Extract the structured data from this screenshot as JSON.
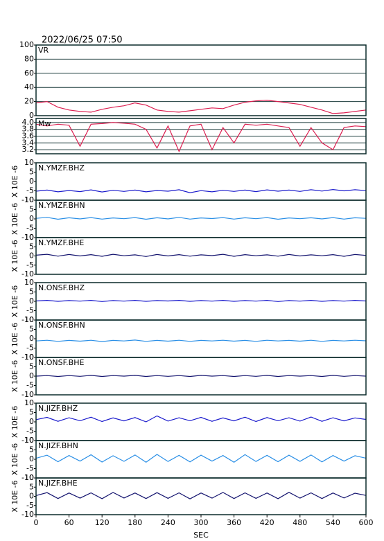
{
  "chart_data": [
    {
      "type": "line",
      "date": "2022/06/25 07:50",
      "title": "VR",
      "color": "#dc1e50",
      "grid": true,
      "x": [
        0,
        20,
        40,
        60,
        80,
        100,
        120,
        140,
        160,
        180,
        200,
        220,
        240,
        260,
        280,
        300,
        320,
        340,
        360,
        380,
        400,
        420,
        440,
        460,
        480,
        500,
        520,
        540,
        560,
        580,
        600
      ],
      "values": [
        18,
        20,
        12,
        8,
        6,
        5,
        9,
        12,
        14,
        18,
        15,
        8,
        6,
        5,
        7,
        9,
        11,
        10,
        15,
        19,
        21,
        22,
        20,
        18,
        16,
        12,
        8,
        3,
        4,
        6,
        8
      ],
      "xlim": [
        0,
        600
      ],
      "ylim": [
        0,
        100
      ],
      "yticks": [
        0,
        20,
        40,
        60,
        80,
        100
      ]
    },
    {
      "type": "line",
      "title": "Mw",
      "color": "#dc1e50",
      "grid": true,
      "x": [
        0,
        20,
        40,
        60,
        80,
        100,
        120,
        140,
        160,
        180,
        200,
        220,
        240,
        260,
        280,
        300,
        320,
        340,
        360,
        380,
        400,
        420,
        440,
        460,
        480,
        500,
        520,
        540,
        560,
        580,
        600
      ],
      "values": [
        3.95,
        3.9,
        3.95,
        3.92,
        3.3,
        3.95,
        3.97,
        4.0,
        3.98,
        3.95,
        3.8,
        3.25,
        3.9,
        3.15,
        3.9,
        3.95,
        3.2,
        3.85,
        3.4,
        3.95,
        3.92,
        3.95,
        3.9,
        3.85,
        3.3,
        3.85,
        3.4,
        3.2,
        3.85,
        3.9,
        3.88
      ],
      "xlim": [
        0,
        600
      ],
      "ylim": [
        3.08,
        4.12
      ],
      "yticks": [
        {
          "value": 3.2,
          "label": "3.2"
        },
        {
          "value": 3.4,
          "label": "3.4"
        },
        {
          "value": 3.6,
          "label": "3.6"
        },
        {
          "value": 3.8,
          "label": "3.8"
        },
        {
          "value": 4.0,
          "label": "4.0"
        }
      ]
    },
    {
      "type": "line",
      "title": "N.YMZF.BHZ",
      "ylabel": "X 10E -6",
      "color": "#1a1acc",
      "x": [
        0,
        20,
        40,
        60,
        80,
        100,
        120,
        140,
        160,
        180,
        200,
        220,
        240,
        260,
        280,
        300,
        320,
        340,
        360,
        380,
        400,
        420,
        440,
        460,
        480,
        500,
        520,
        540,
        560,
        580,
        600
      ],
      "values": [
        -5.2,
        -4.6,
        -5.5,
        -4.8,
        -5.4,
        -4.5,
        -5.6,
        -4.7,
        -5.3,
        -4.6,
        -5.5,
        -4.8,
        -5.2,
        -4.4,
        -6.0,
        -4.9,
        -5.5,
        -4.7,
        -5.3,
        -4.6,
        -5.4,
        -4.5,
        -5.2,
        -4.6,
        -5.3,
        -4.4,
        -5.1,
        -4.3,
        -5.0,
        -4.4,
        -4.9
      ],
      "xlim": [
        0,
        600
      ],
      "ylim": [
        -10,
        10
      ],
      "yticks": [
        -10,
        -5,
        0,
        5,
        10
      ]
    },
    {
      "type": "line",
      "title": "N.YMZF.BHN",
      "ylabel": "X 10E -6",
      "color": "#2a8fe6",
      "x": [
        0,
        20,
        40,
        60,
        80,
        100,
        120,
        140,
        160,
        180,
        200,
        220,
        240,
        260,
        280,
        300,
        320,
        340,
        360,
        380,
        400,
        420,
        440,
        460,
        480,
        500,
        520,
        540,
        560,
        580,
        600
      ],
      "values": [
        0.3,
        0.8,
        -0.2,
        0.6,
        0.0,
        0.7,
        -0.1,
        0.5,
        0.1,
        0.7,
        -0.2,
        0.6,
        0.0,
        0.8,
        -0.1,
        0.5,
        0.2,
        0.7,
        -0.1,
        0.6,
        0.1,
        0.7,
        -0.2,
        0.5,
        0.1,
        0.6,
        0.0,
        0.7,
        -0.1,
        0.6,
        0.3
      ],
      "xlim": [
        0,
        600
      ],
      "ylim": [
        -10,
        10
      ],
      "yticks": [
        -10,
        -5,
        0,
        5,
        10
      ]
    },
    {
      "type": "line",
      "title": "N.YMZF.BHE",
      "ylabel": "X 10E -6",
      "color": "#12126e",
      "x": [
        0,
        20,
        40,
        60,
        80,
        100,
        120,
        140,
        160,
        180,
        200,
        220,
        240,
        260,
        280,
        300,
        320,
        340,
        360,
        380,
        400,
        420,
        440,
        460,
        480,
        500,
        520,
        540,
        560,
        580,
        600
      ],
      "values": [
        0.4,
        0.9,
        -0.1,
        0.8,
        0.0,
        0.7,
        -0.2,
        0.9,
        0.1,
        0.6,
        -0.3,
        0.8,
        0.0,
        0.7,
        -0.1,
        0.6,
        0.2,
        0.9,
        -0.2,
        0.7,
        0.1,
        0.6,
        -0.1,
        0.8,
        0.0,
        0.6,
        0.1,
        0.7,
        -0.2,
        0.8,
        0.3
      ],
      "xlim": [
        0,
        600
      ],
      "ylim": [
        -10,
        10
      ],
      "yticks": [
        -10,
        -5,
        0,
        5,
        10
      ]
    },
    {
      "type": "line",
      "title": "N.ONSF.BHZ",
      "ylabel": "X 10E -6",
      "color": "#1a1acc",
      "x": [
        0,
        20,
        40,
        60,
        80,
        100,
        120,
        140,
        160,
        180,
        200,
        220,
        240,
        260,
        280,
        300,
        320,
        340,
        360,
        380,
        400,
        420,
        440,
        460,
        480,
        500,
        520,
        540,
        560,
        580,
        600
      ],
      "values": [
        0.2,
        0.5,
        0.0,
        0.4,
        0.1,
        0.5,
        -0.1,
        0.4,
        0.1,
        0.5,
        0.0,
        0.4,
        0.2,
        0.5,
        0.0,
        0.4,
        0.1,
        0.5,
        0.0,
        0.4,
        0.1,
        0.5,
        -0.1,
        0.4,
        0.1,
        0.5,
        0.0,
        0.4,
        0.1,
        0.5,
        0.2
      ],
      "xlim": [
        0,
        600
      ],
      "ylim": [
        -10,
        10
      ],
      "yticks": [
        -10,
        -5,
        0,
        5,
        10
      ]
    },
    {
      "type": "line",
      "title": "N.ONSF.BHN",
      "ylabel": "X 10E -6",
      "color": "#2a8fe6",
      "x": [
        0,
        20,
        40,
        60,
        80,
        100,
        120,
        140,
        160,
        180,
        200,
        220,
        240,
        260,
        280,
        300,
        320,
        340,
        360,
        380,
        400,
        420,
        440,
        460,
        480,
        500,
        520,
        540,
        560,
        580,
        600
      ],
      "values": [
        -1.2,
        -0.8,
        -1.4,
        -0.9,
        -1.3,
        -0.8,
        -1.5,
        -0.9,
        -1.2,
        -0.7,
        -1.4,
        -0.9,
        -1.3,
        -0.8,
        -1.4,
        -0.9,
        -1.2,
        -0.8,
        -1.3,
        -0.9,
        -1.4,
        -0.8,
        -1.2,
        -0.9,
        -1.3,
        -0.8,
        -1.4,
        -0.9,
        -1.2,
        -0.8,
        -1.1
      ],
      "xlim": [
        0,
        600
      ],
      "ylim": [
        -10,
        10
      ],
      "yticks": [
        -10,
        -5,
        0,
        5,
        10
      ]
    },
    {
      "type": "line",
      "title": "N.ONSF.BHE",
      "ylabel": "X 10E -6",
      "color": "#12126e",
      "x": [
        0,
        20,
        40,
        60,
        80,
        100,
        120,
        140,
        160,
        180,
        200,
        220,
        240,
        260,
        280,
        300,
        320,
        340,
        360,
        380,
        400,
        420,
        440,
        460,
        480,
        500,
        520,
        540,
        560,
        580,
        600
      ],
      "values": [
        0.0,
        0.3,
        -0.2,
        0.3,
        -0.1,
        0.4,
        -0.2,
        0.3,
        0.0,
        0.4,
        -0.2,
        0.3,
        -0.1,
        0.3,
        -0.2,
        0.4,
        0.0,
        0.3,
        -0.2,
        0.3,
        -0.1,
        0.4,
        -0.2,
        0.3,
        0.0,
        0.3,
        -0.2,
        0.4,
        -0.1,
        0.3,
        0.0
      ],
      "xlim": [
        0,
        600
      ],
      "ylim": [
        -10,
        10
      ],
      "yticks": [
        -10,
        -5,
        0,
        5,
        10
      ]
    },
    {
      "type": "line",
      "title": "N.JIZF.BHZ",
      "ylabel": "X 10E -6",
      "color": "#1a1acc",
      "x": [
        0,
        20,
        40,
        60,
        80,
        100,
        120,
        140,
        160,
        180,
        200,
        220,
        240,
        260,
        280,
        300,
        320,
        340,
        360,
        380,
        400,
        420,
        440,
        460,
        480,
        500,
        520,
        540,
        560,
        580,
        600
      ],
      "values": [
        1.2,
        2.4,
        0.3,
        2.2,
        0.6,
        2.5,
        0.2,
        2.1,
        0.5,
        2.3,
        0.0,
        3.2,
        0.4,
        2.2,
        0.6,
        2.4,
        0.3,
        2.1,
        0.5,
        2.5,
        0.2,
        2.3,
        0.6,
        2.2,
        0.4,
        2.6,
        0.3,
        2.2,
        0.5,
        2.1,
        1.3
      ],
      "xlim": [
        0,
        600
      ],
      "ylim": [
        -10,
        10
      ],
      "yticks": [
        -10,
        -5,
        0,
        5,
        10
      ]
    },
    {
      "type": "line",
      "title": "N.JIZF.BHN",
      "ylabel": "X 10E -6",
      "color": "#2a8fe6",
      "x": [
        0,
        20,
        40,
        60,
        80,
        100,
        120,
        140,
        160,
        180,
        200,
        220,
        240,
        260,
        280,
        300,
        320,
        340,
        360,
        380,
        400,
        420,
        440,
        460,
        480,
        500,
        520,
        540,
        560,
        580,
        600
      ],
      "values": [
        0.5,
        2.2,
        -1.3,
        2.0,
        -1.0,
        2.4,
        -1.5,
        1.9,
        -1.1,
        2.3,
        -1.6,
        2.6,
        -1.2,
        2.1,
        -1.4,
        2.2,
        -1.0,
        2.0,
        -1.6,
        2.5,
        -1.2,
        2.1,
        -1.3,
        2.2,
        -1.1,
        2.3,
        -1.4,
        2.0,
        -1.0,
        1.9,
        0.6
      ],
      "xlim": [
        0,
        600
      ],
      "ylim": [
        -10,
        10
      ],
      "yticks": [
        -10,
        -5,
        0,
        5,
        10
      ]
    },
    {
      "type": "line",
      "title": "N.JIZF.BHE",
      "ylabel": "X 10E -6",
      "color": "#12126e",
      "x": [
        0,
        20,
        40,
        60,
        80,
        100,
        120,
        140,
        160,
        180,
        200,
        220,
        240,
        260,
        280,
        300,
        320,
        340,
        360,
        380,
        400,
        420,
        440,
        460,
        480,
        500,
        520,
        540,
        560,
        580,
        600
      ],
      "values": [
        0.4,
        2.0,
        -1.2,
        1.8,
        -1.0,
        1.9,
        -1.3,
        2.1,
        -0.9,
        1.8,
        -1.2,
        2.0,
        -1.1,
        1.9,
        -1.4,
        1.8,
        -1.0,
        2.1,
        -1.2,
        1.9,
        -1.1,
        1.8,
        -1.3,
        2.2,
        -1.0,
        1.9,
        -1.2,
        1.8,
        -0.9,
        1.7,
        0.5
      ],
      "xlim": [
        0,
        600
      ],
      "ylim": [
        -10,
        10
      ],
      "yticks": [
        -10,
        -5,
        0,
        5,
        10
      ],
      "xticks": [
        0,
        60,
        120,
        180,
        240,
        300,
        360,
        420,
        480,
        540,
        600
      ],
      "xlabel": "SEC"
    }
  ]
}
